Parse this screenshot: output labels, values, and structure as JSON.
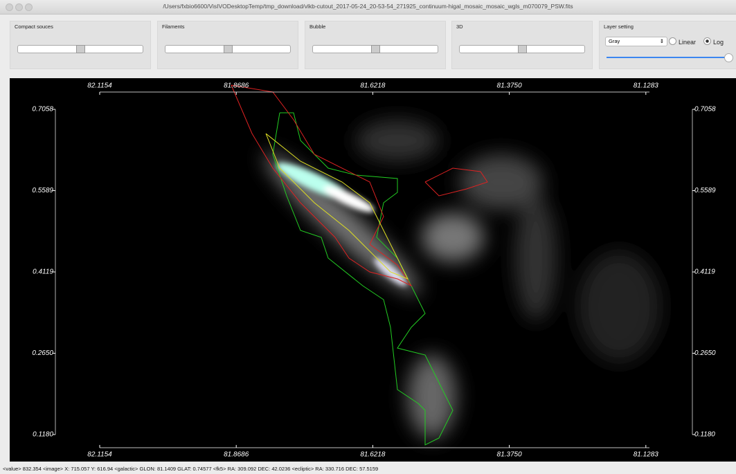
{
  "window": {
    "title": "/Users/fxbio6600/VisIVODesktopTemp/tmp_download/vlkb-cutout_2017-05-24_20-53-54_271925_continuum-higal_mosaic_mosaic_wgls_m070079_PSW.fits"
  },
  "panels": [
    {
      "label": "Compact souces"
    },
    {
      "label": "Filaments"
    },
    {
      "label": "Bubble"
    },
    {
      "label": "3D"
    }
  ],
  "layer_setting": {
    "label": "Layer setting",
    "colormap": "Gray",
    "options": [
      "Linear",
      "Log"
    ]
  },
  "axes": {
    "x_ticks": [
      "82.1154",
      "81.8686",
      "81.6218",
      "81.3750",
      "81.1283"
    ],
    "y_ticks": [
      "0.7058",
      "0.5589",
      "0.4119",
      "0.2650",
      "0.1180"
    ]
  },
  "status_bar": "<value> 832.354 <image> X: 715.057 Y: 616.94 <galactic> GLON: 81.1409 GLAT: 0.74577 <fk5> RA: 309.092 DEC: 42.0236 <ecliptic> RA: 330.716 DEC: 57.5159"
}
